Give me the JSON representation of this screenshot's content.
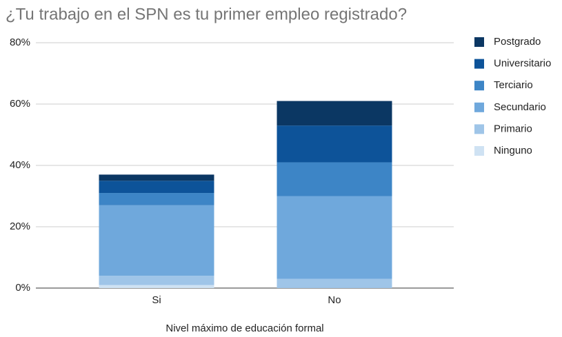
{
  "chart_data": {
    "type": "stacked_bar",
    "title": "¿Tu trabajo en el SPN es tu primer empleo registrado?",
    "x_label": "Nivel máximo de educación formal",
    "categories": [
      "Si",
      "No"
    ],
    "series": [
      {
        "name": "Ninguno",
        "color": "#cfe2f3",
        "values": [
          1,
          0
        ]
      },
      {
        "name": "Primario",
        "color": "#9fc5e8",
        "values": [
          3,
          3
        ]
      },
      {
        "name": "Secundario",
        "color": "#6fa8dc",
        "values": [
          23,
          27
        ]
      },
      {
        "name": "Terciario",
        "color": "#3d85c6",
        "values": [
          4,
          11
        ]
      },
      {
        "name": "Universitario",
        "color": "#0d5399",
        "values": [
          4,
          12
        ]
      },
      {
        "name": "Postgrado",
        "color": "#0b3763",
        "values": [
          2,
          8
        ]
      }
    ],
    "ylim": [
      0,
      80
    ],
    "yticks": [
      {
        "value": 0,
        "label": "0%"
      },
      {
        "value": 20,
        "label": "20%"
      },
      {
        "value": 40,
        "label": "40%"
      },
      {
        "value": 60,
        "label": "60%"
      },
      {
        "value": 80,
        "label": "80%"
      }
    ],
    "grid": true,
    "legend": "right"
  }
}
